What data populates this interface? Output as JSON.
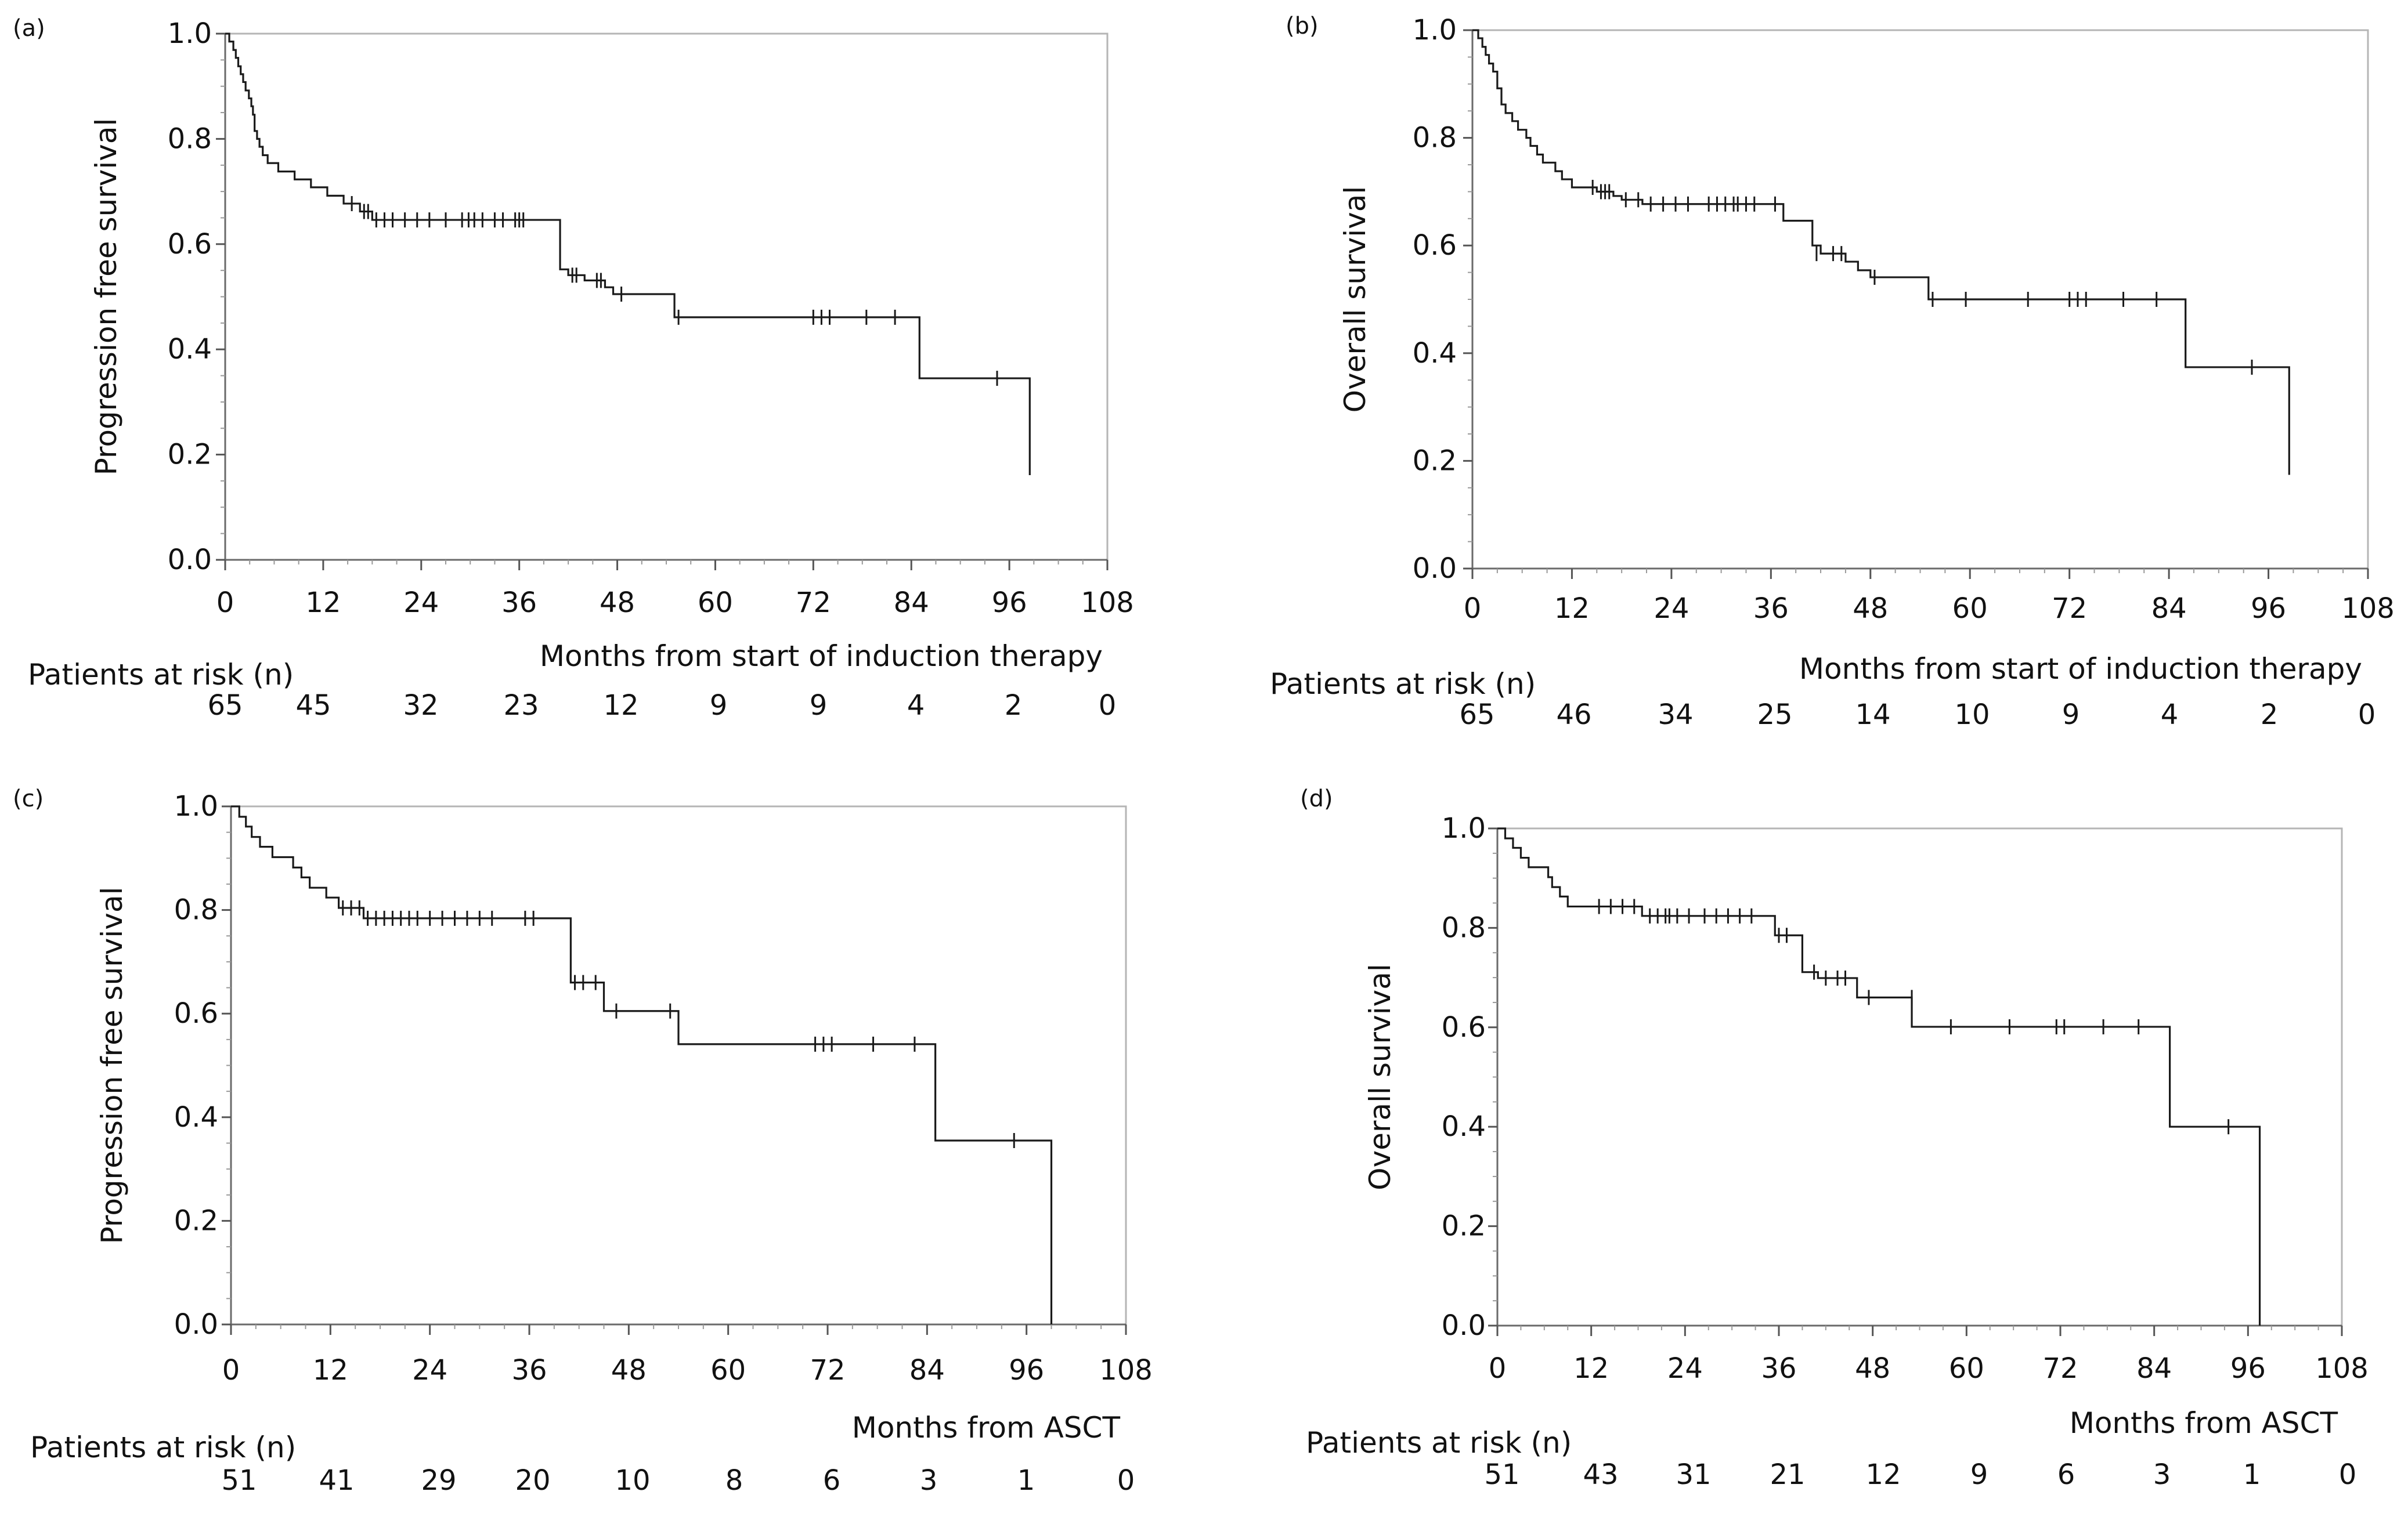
{
  "chart_data": [
    {
      "type": "line",
      "subtype": "kaplan-meier",
      "panel_label": "(a)",
      "ylabel": "Progression free survival",
      "xlabel": "Months from start of induction therapy",
      "xlim": [
        0,
        108
      ],
      "ylim": [
        0,
        1.0
      ],
      "x_ticks": [
        "0",
        "12",
        "24",
        "36",
        "48",
        "60",
        "72",
        "84",
        "96",
        "108"
      ],
      "y_ticks": [
        "0.0",
        "0.2",
        "0.4",
        "0.6",
        "0.8",
        "1.0"
      ],
      "risk_label": "Patients at risk (n)",
      "at_risk": [
        "65",
        "45",
        "32",
        "23",
        "12",
        "9",
        "9",
        "4",
        "2",
        "0"
      ],
      "steps": [
        [
          0,
          1.0
        ],
        [
          0.5,
          0.985
        ],
        [
          1.0,
          0.969
        ],
        [
          1.3,
          0.954
        ],
        [
          1.6,
          0.938
        ],
        [
          1.9,
          0.923
        ],
        [
          2.2,
          0.908
        ],
        [
          2.5,
          0.892
        ],
        [
          2.9,
          0.877
        ],
        [
          3.2,
          0.862
        ],
        [
          3.4,
          0.846
        ],
        [
          3.6,
          0.815
        ],
        [
          3.9,
          0.8
        ],
        [
          4.2,
          0.785
        ],
        [
          4.6,
          0.769
        ],
        [
          5.2,
          0.754
        ],
        [
          6.5,
          0.738
        ],
        [
          8.5,
          0.723
        ],
        [
          10.5,
          0.708
        ],
        [
          12.5,
          0.692
        ],
        [
          14.5,
          0.677
        ],
        [
          16.5,
          0.662
        ],
        [
          18.0,
          0.646
        ],
        [
          41.0,
          0.552
        ],
        [
          42.0,
          0.541
        ],
        [
          44.0,
          0.531
        ],
        [
          46.5,
          0.518
        ],
        [
          47.5,
          0.505
        ],
        [
          55.0,
          0.461
        ],
        [
          85.0,
          0.345
        ],
        [
          98.5,
          0.161
        ]
      ],
      "censored": [
        [
          15.5,
          0.677
        ],
        [
          17.0,
          0.662
        ],
        [
          17.5,
          0.662
        ],
        [
          18.5,
          0.646
        ],
        [
          19.5,
          0.646
        ],
        [
          20.5,
          0.646
        ],
        [
          22.0,
          0.646
        ],
        [
          23.5,
          0.646
        ],
        [
          25.0,
          0.646
        ],
        [
          27.0,
          0.646
        ],
        [
          29.0,
          0.646
        ],
        [
          29.8,
          0.646
        ],
        [
          30.5,
          0.646
        ],
        [
          31.5,
          0.646
        ],
        [
          33.0,
          0.646
        ],
        [
          34.0,
          0.646
        ],
        [
          35.5,
          0.646
        ],
        [
          36.0,
          0.646
        ],
        [
          36.5,
          0.646
        ],
        [
          42.5,
          0.541
        ],
        [
          43.0,
          0.541
        ],
        [
          45.5,
          0.531
        ],
        [
          46.0,
          0.531
        ],
        [
          48.5,
          0.505
        ],
        [
          55.5,
          0.461
        ],
        [
          72.0,
          0.461
        ],
        [
          73.0,
          0.461
        ],
        [
          74.0,
          0.461
        ],
        [
          78.5,
          0.461
        ],
        [
          82.0,
          0.461
        ],
        [
          94.5,
          0.345
        ]
      ]
    },
    {
      "type": "line",
      "subtype": "kaplan-meier",
      "panel_label": "(b)",
      "ylabel": "Overall survival",
      "xlabel": "Months from start of induction therapy",
      "xlim": [
        0,
        108
      ],
      "ylim": [
        0,
        1.0
      ],
      "x_ticks": [
        "0",
        "12",
        "24",
        "36",
        "48",
        "60",
        "72",
        "84",
        "96",
        "108"
      ],
      "y_ticks": [
        "0.0",
        "0.2",
        "0.4",
        "0.6",
        "0.8",
        "1.0"
      ],
      "risk_label": "Patients at risk (n)",
      "at_risk": [
        "65",
        "46",
        "34",
        "25",
        "14",
        "10",
        "9",
        "4",
        "2",
        "0"
      ],
      "steps": [
        [
          0,
          1.0
        ],
        [
          0.7,
          0.985
        ],
        [
          1.2,
          0.969
        ],
        [
          1.6,
          0.954
        ],
        [
          2.0,
          0.938
        ],
        [
          2.5,
          0.923
        ],
        [
          3.0,
          0.892
        ],
        [
          3.5,
          0.862
        ],
        [
          4.0,
          0.846
        ],
        [
          4.8,
          0.831
        ],
        [
          5.5,
          0.815
        ],
        [
          6.5,
          0.8
        ],
        [
          7.0,
          0.785
        ],
        [
          7.8,
          0.769
        ],
        [
          8.5,
          0.754
        ],
        [
          10.0,
          0.738
        ],
        [
          10.8,
          0.723
        ],
        [
          12.0,
          0.708
        ],
        [
          15.0,
          0.7
        ],
        [
          17.0,
          0.692
        ],
        [
          18.0,
          0.685
        ],
        [
          20.5,
          0.677
        ],
        [
          37.5,
          0.646
        ],
        [
          41.0,
          0.6
        ],
        [
          42.0,
          0.585
        ],
        [
          45.0,
          0.57
        ],
        [
          46.5,
          0.554
        ],
        [
          48.0,
          0.541
        ],
        [
          55.0,
          0.5
        ],
        [
          86.0,
          0.374
        ],
        [
          98.5,
          0.174
        ]
      ],
      "censored": [
        [
          14.5,
          0.708
        ],
        [
          15.5,
          0.7
        ],
        [
          16.0,
          0.7
        ],
        [
          16.5,
          0.7
        ],
        [
          18.5,
          0.685
        ],
        [
          20.0,
          0.685
        ],
        [
          21.5,
          0.677
        ],
        [
          23.0,
          0.677
        ],
        [
          24.5,
          0.677
        ],
        [
          26.0,
          0.677
        ],
        [
          28.5,
          0.677
        ],
        [
          29.5,
          0.677
        ],
        [
          30.5,
          0.677
        ],
        [
          31.5,
          0.677
        ],
        [
          32.0,
          0.677
        ],
        [
          33.0,
          0.677
        ],
        [
          34.0,
          0.677
        ],
        [
          36.5,
          0.677
        ],
        [
          41.5,
          0.585
        ],
        [
          43.5,
          0.585
        ],
        [
          44.5,
          0.585
        ],
        [
          48.5,
          0.541
        ],
        [
          55.5,
          0.5
        ],
        [
          59.5,
          0.5
        ],
        [
          67.0,
          0.5
        ],
        [
          72.0,
          0.5
        ],
        [
          73.0,
          0.5
        ],
        [
          74.0,
          0.5
        ],
        [
          78.5,
          0.5
        ],
        [
          82.5,
          0.5
        ],
        [
          94.0,
          0.374
        ]
      ]
    },
    {
      "type": "line",
      "subtype": "kaplan-meier",
      "panel_label": "(c)",
      "ylabel": "Progression free survival",
      "xlabel": "Months from ASCT",
      "xlim": [
        0,
        108
      ],
      "ylim": [
        0,
        1.0
      ],
      "x_ticks": [
        "0",
        "12",
        "24",
        "36",
        "48",
        "60",
        "72",
        "84",
        "96",
        "108"
      ],
      "y_ticks": [
        "0.0",
        "0.2",
        "0.4",
        "0.6",
        "0.8",
        "1.0"
      ],
      "risk_label": "Patients at risk (n)",
      "at_risk": [
        "51",
        "41",
        "29",
        "20",
        "10",
        "8",
        "6",
        "3",
        "1",
        "0"
      ],
      "steps": [
        [
          0,
          1.0
        ],
        [
          1.0,
          0.98
        ],
        [
          1.8,
          0.961
        ],
        [
          2.5,
          0.941
        ],
        [
          3.5,
          0.922
        ],
        [
          5.0,
          0.902
        ],
        [
          7.5,
          0.882
        ],
        [
          8.5,
          0.863
        ],
        [
          9.5,
          0.843
        ],
        [
          11.5,
          0.824
        ],
        [
          13.0,
          0.804
        ],
        [
          16.0,
          0.784
        ],
        [
          41.0,
          0.66
        ],
        [
          45.0,
          0.605
        ],
        [
          54.0,
          0.541
        ],
        [
          85.0,
          0.355
        ],
        [
          99.0,
          0.0
        ]
      ],
      "censored": [
        [
          13.5,
          0.804
        ],
        [
          14.5,
          0.804
        ],
        [
          15.5,
          0.804
        ],
        [
          16.5,
          0.784
        ],
        [
          17.5,
          0.784
        ],
        [
          18.5,
          0.784
        ],
        [
          19.5,
          0.784
        ],
        [
          20.5,
          0.784
        ],
        [
          21.5,
          0.784
        ],
        [
          22.5,
          0.784
        ],
        [
          24.0,
          0.784
        ],
        [
          25.5,
          0.784
        ],
        [
          27.0,
          0.784
        ],
        [
          28.5,
          0.784
        ],
        [
          30.0,
          0.784
        ],
        [
          31.5,
          0.784
        ],
        [
          35.5,
          0.784
        ],
        [
          36.5,
          0.784
        ],
        [
          41.5,
          0.66
        ],
        [
          42.5,
          0.66
        ],
        [
          44.0,
          0.66
        ],
        [
          46.5,
          0.605
        ],
        [
          53.0,
          0.605
        ],
        [
          70.5,
          0.541
        ],
        [
          71.5,
          0.541
        ],
        [
          72.5,
          0.541
        ],
        [
          77.5,
          0.541
        ],
        [
          82.5,
          0.541
        ],
        [
          94.5,
          0.355
        ]
      ]
    },
    {
      "type": "line",
      "subtype": "kaplan-meier",
      "panel_label": "(d)",
      "ylabel": "Overall survival",
      "xlabel": "Months from ASCT",
      "xlim": [
        0,
        108
      ],
      "ylim": [
        0,
        1.0
      ],
      "x_ticks": [
        "0",
        "12",
        "24",
        "36",
        "48",
        "60",
        "72",
        "84",
        "96",
        "108"
      ],
      "y_ticks": [
        "0.0",
        "0.2",
        "0.4",
        "0.6",
        "0.8",
        "1.0"
      ],
      "risk_label": "Patients at risk (n)",
      "at_risk": [
        "51",
        "43",
        "31",
        "21",
        "12",
        "9",
        "6",
        "3",
        "1",
        "0"
      ],
      "steps": [
        [
          0,
          1.0
        ],
        [
          1.0,
          0.98
        ],
        [
          2.0,
          0.961
        ],
        [
          3.0,
          0.941
        ],
        [
          4.0,
          0.922
        ],
        [
          6.5,
          0.902
        ],
        [
          7.0,
          0.882
        ],
        [
          8.0,
          0.863
        ],
        [
          9.0,
          0.843
        ],
        [
          18.5,
          0.824
        ],
        [
          35.5,
          0.785
        ],
        [
          39.0,
          0.711
        ],
        [
          41.0,
          0.699
        ],
        [
          46.0,
          0.66
        ],
        [
          53.0,
          0.601
        ],
        [
          86.0,
          0.4
        ],
        [
          97.5,
          0.0
        ]
      ],
      "censored": [
        [
          13.0,
          0.843
        ],
        [
          14.5,
          0.843
        ],
        [
          16.0,
          0.843
        ],
        [
          17.5,
          0.843
        ],
        [
          19.5,
          0.824
        ],
        [
          20.5,
          0.824
        ],
        [
          21.5,
          0.824
        ],
        [
          22.0,
          0.824
        ],
        [
          23.0,
          0.824
        ],
        [
          24.5,
          0.824
        ],
        [
          26.5,
          0.824
        ],
        [
          28.0,
          0.824
        ],
        [
          29.5,
          0.824
        ],
        [
          31.0,
          0.824
        ],
        [
          32.5,
          0.824
        ],
        [
          36.0,
          0.785
        ],
        [
          37.0,
          0.785
        ],
        [
          40.5,
          0.711
        ],
        [
          42.0,
          0.699
        ],
        [
          43.5,
          0.699
        ],
        [
          44.5,
          0.699
        ],
        [
          47.5,
          0.66
        ],
        [
          53.0,
          0.66
        ],
        [
          58.0,
          0.601
        ],
        [
          65.5,
          0.601
        ],
        [
          71.5,
          0.601
        ],
        [
          72.5,
          0.601
        ],
        [
          77.5,
          0.601
        ],
        [
          82.0,
          0.601
        ],
        [
          93.5,
          0.4
        ]
      ]
    }
  ]
}
